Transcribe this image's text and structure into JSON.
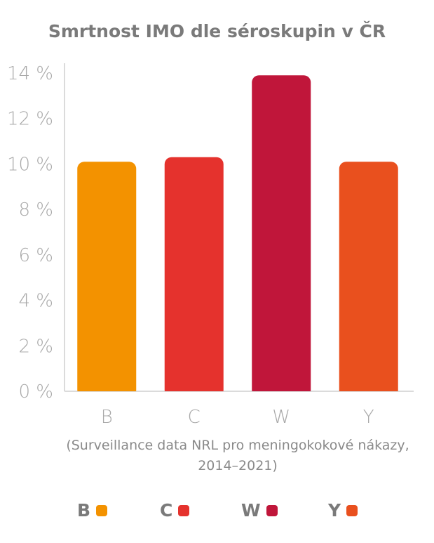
{
  "chart_data": {
    "type": "bar",
    "title": "Smrtnost IMO dle séroskupin v ČR",
    "source_note": "(Surveillance data NRL pro meningokokové nákazy, 2014–2021)",
    "categories": [
      "B",
      "C",
      "W",
      "Y"
    ],
    "values": [
      10.1,
      10.3,
      13.9,
      10.1
    ],
    "colors": [
      "#f39200",
      "#e5322d",
      "#c0163a",
      "#e9501e"
    ],
    "ylim": [
      0,
      14
    ],
    "yticks": [
      "0 %",
      "2 %",
      "4 %",
      "6 %",
      "8 %",
      "10 %",
      "12 %",
      "14 %"
    ],
    "legend": [
      {
        "label": "B",
        "color": "#f39200"
      },
      {
        "label": "C",
        "color": "#e5322d"
      },
      {
        "label": "W",
        "color": "#c0163a"
      },
      {
        "label": "Y",
        "color": "#e9501e"
      }
    ],
    "legend_position": "bottom",
    "grid": false
  }
}
